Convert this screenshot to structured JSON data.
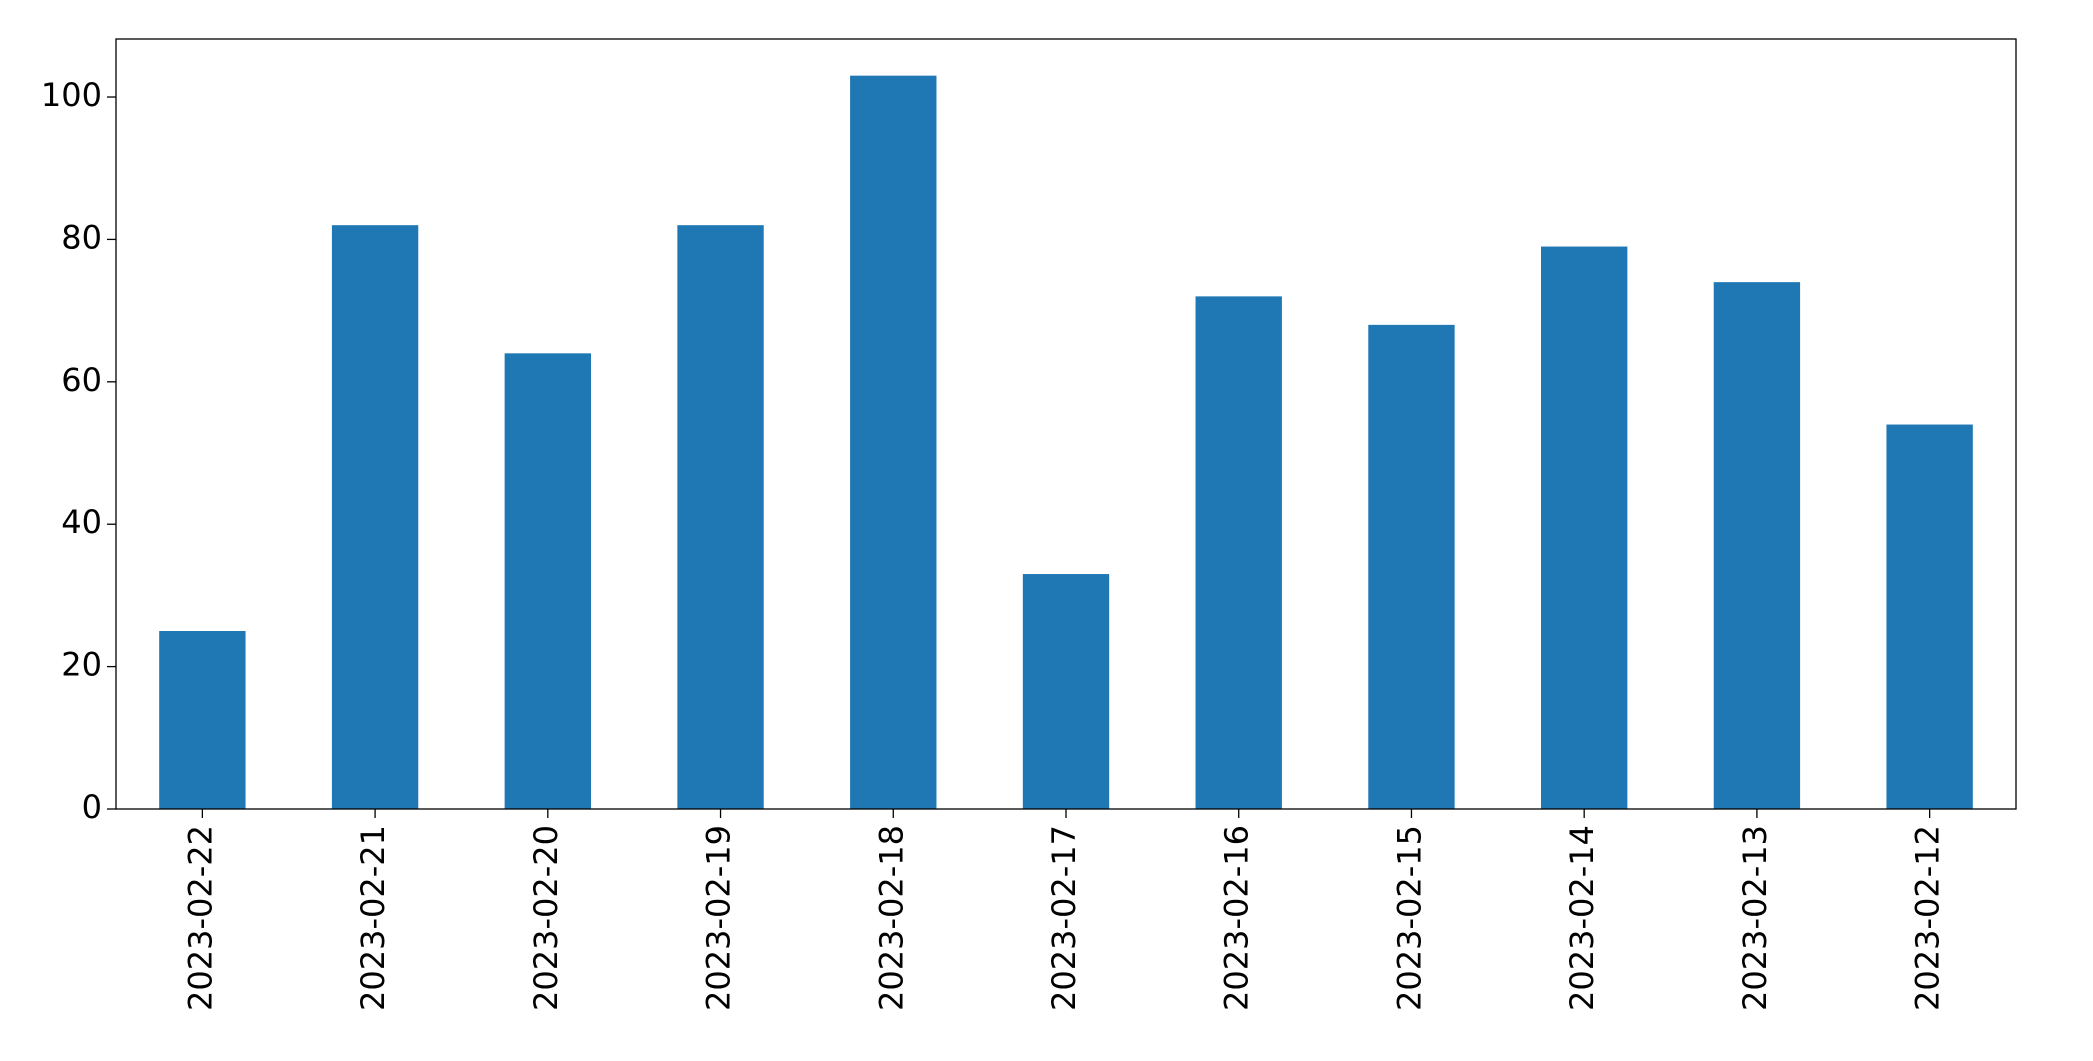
{
  "chart_data": {
    "type": "bar",
    "categories": [
      "2023-02-22",
      "2023-02-21",
      "2023-02-20",
      "2023-02-19",
      "2023-02-18",
      "2023-02-17",
      "2023-02-16",
      "2023-02-15",
      "2023-02-14",
      "2023-02-13",
      "2023-02-12"
    ],
    "values": [
      25,
      82,
      64,
      82,
      103,
      33,
      72,
      68,
      79,
      74,
      54
    ],
    "color": "#1f77b4",
    "ylim": [
      0,
      108.15
    ],
    "yticks": [
      0,
      20,
      40,
      60,
      80,
      100
    ],
    "grid": false
  }
}
